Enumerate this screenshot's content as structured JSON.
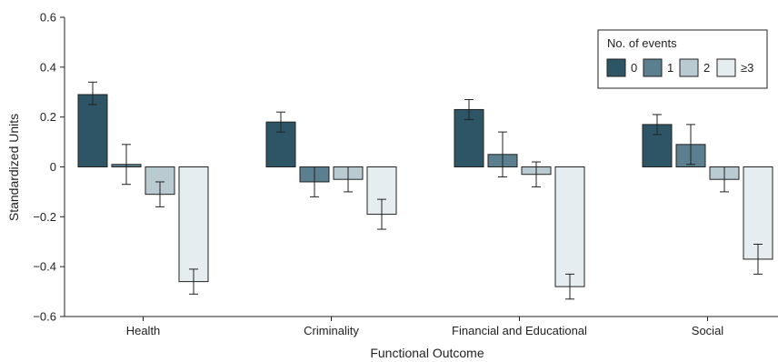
{
  "chart_data": {
    "type": "bar",
    "title": "",
    "xlabel": "Functional Outcome",
    "ylabel": "Standardized Units",
    "ylim": [
      -0.6,
      0.6
    ],
    "yticks": [
      -0.6,
      -0.4,
      -0.2,
      0,
      0.2,
      0.4,
      0.6
    ],
    "ytick_labels": [
      "−0.6",
      "−0.4",
      "−0.2",
      "0",
      "0.2",
      "0.4",
      "0.6"
    ],
    "categories": [
      "Health",
      "Criminality",
      "Financial and Educational",
      "Social"
    ],
    "error_bars": true,
    "grid": false,
    "legend": {
      "title": "No. of events",
      "placement": "top-right"
    },
    "series": [
      {
        "name": "0",
        "color": "#2e5566",
        "values": [
          0.29,
          0.18,
          0.23,
          0.17
        ],
        "err_low": [
          0.25,
          0.14,
          0.19,
          0.13
        ],
        "err_high": [
          0.34,
          0.22,
          0.27,
          0.21
        ]
      },
      {
        "name": "1",
        "color": "#5c7f8f",
        "values": [
          0.01,
          -0.06,
          0.05,
          0.09
        ],
        "err_low": [
          -0.07,
          -0.12,
          -0.04,
          0.01
        ],
        "err_high": [
          0.09,
          0.0,
          0.14,
          0.17
        ]
      },
      {
        "name": "2",
        "color": "#b9cad1",
        "values": [
          -0.11,
          -0.05,
          -0.03,
          -0.05
        ],
        "err_low": [
          -0.16,
          -0.1,
          -0.08,
          -0.1
        ],
        "err_high": [
          -0.06,
          0.0,
          0.02,
          0.0
        ]
      },
      {
        "name": "≥3",
        "color": "#e6edf0",
        "values": [
          -0.46,
          -0.19,
          -0.48,
          -0.37
        ],
        "err_low": [
          -0.51,
          -0.25,
          -0.53,
          -0.43
        ],
        "err_high": [
          -0.41,
          -0.13,
          -0.43,
          -0.31
        ]
      }
    ]
  }
}
